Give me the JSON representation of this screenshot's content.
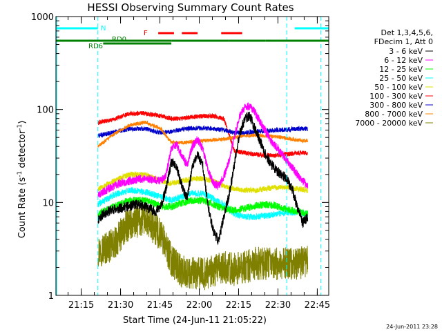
{
  "chart_data": {
    "type": "line",
    "title": "HESSI Observing Summary Count Rates",
    "xlabel": "Start Time (24-Jun-11 21:05:22)",
    "ylabel_main": "Count Rate (s",
    "ylabel_sup1": "-1",
    "ylabel_mid": " detector",
    "ylabel_sup2": "-1",
    "ylabel_end": ")",
    "yscale": "log",
    "ylim": [
      1,
      1000
    ],
    "xlim_minutes": [
      0,
      104
    ],
    "x_tick_labels": [
      "21:15",
      "21:30",
      "21:45",
      "22:00",
      "22:15",
      "22:30",
      "22:45"
    ],
    "y_tick_labels": [
      "1",
      "10",
      "100",
      "1000"
    ],
    "legend": {
      "header1": "Det 1,3,4,5,6,",
      "header2": "FDecim 1, Att 0",
      "placement": "right"
    },
    "series": [
      {
        "name": "3 - 6 keV",
        "color": "#000000",
        "seed": 11,
        "noise": 0.055,
        "x": [
          16,
          18,
          20,
          22,
          24,
          26,
          28,
          30,
          32,
          34,
          36,
          38,
          40,
          42,
          44,
          46,
          48,
          50,
          52,
          54,
          56,
          58,
          60,
          62,
          64,
          66,
          68,
          70,
          72,
          74,
          76,
          78,
          80,
          82,
          84,
          86,
          88,
          90,
          92,
          94,
          96
        ],
        "y": [
          6.5,
          7.5,
          8,
          8.5,
          8.5,
          9,
          9,
          9.5,
          9.5,
          9,
          8.5,
          8,
          9,
          14,
          27,
          24,
          15,
          11,
          24,
          33,
          25,
          9,
          5,
          3.8,
          7,
          12,
          25,
          55,
          80,
          85,
          60,
          45,
          32,
          26,
          22,
          20,
          18,
          14,
          9,
          6,
          7
        ]
      },
      {
        "name": "6 - 12 keV",
        "color": "#ff00ff",
        "seed": 23,
        "noise": 0.045,
        "x": [
          16,
          20,
          24,
          28,
          32,
          36,
          40,
          42,
          44,
          46,
          48,
          50,
          52,
          54,
          56,
          58,
          60,
          62,
          64,
          66,
          68,
          70,
          72,
          74,
          76,
          78,
          80,
          82,
          84,
          86,
          88,
          90,
          92,
          94,
          96
        ],
        "y": [
          12,
          14,
          16,
          17,
          18,
          18,
          17,
          20,
          38,
          42,
          32,
          25,
          40,
          48,
          38,
          22,
          16,
          15,
          19,
          28,
          50,
          85,
          105,
          110,
          92,
          72,
          58,
          46,
          40,
          34,
          28,
          24,
          20,
          17,
          15
        ]
      },
      {
        "name": "12 - 25 keV",
        "color": "#00ff00",
        "seed": 37,
        "noise": 0.04,
        "x": [
          16,
          22,
          28,
          34,
          40,
          44,
          48,
          52,
          56,
          60,
          64,
          68,
          72,
          76,
          80,
          84,
          88,
          92,
          96
        ],
        "y": [
          7.5,
          9,
          10.5,
          10.5,
          9.2,
          9,
          9.8,
          10.5,
          10.5,
          9.5,
          8.5,
          8.3,
          8.6,
          9.2,
          9.5,
          9.2,
          8.5,
          8,
          7.5
        ]
      },
      {
        "name": "25 - 50 keV",
        "color": "#00ffff",
        "seed": 41,
        "noise": 0.035,
        "x": [
          16,
          22,
          28,
          34,
          40,
          44,
          48,
          52,
          56,
          60,
          64,
          68,
          72,
          76,
          80,
          84,
          88,
          92,
          96
        ],
        "y": [
          9.5,
          12,
          13.5,
          13,
          11.5,
          10.5,
          11.5,
          12.5,
          12.5,
          11,
          9.5,
          7.5,
          7,
          7,
          7.2,
          7.5,
          7.8,
          7.8,
          7.5
        ]
      },
      {
        "name": "50 - 100 keV",
        "color": "#e0e000",
        "seed": 53,
        "noise": 0.03,
        "x": [
          16,
          22,
          28,
          34,
          40,
          44,
          48,
          52,
          56,
          60,
          64,
          68,
          72,
          76,
          80,
          84,
          88,
          92,
          96
        ],
        "y": [
          14,
          17,
          20,
          20,
          17,
          16,
          17,
          18,
          18,
          17,
          15,
          14,
          13.5,
          13.5,
          14,
          14.5,
          14.5,
          14,
          13.5
        ]
      },
      {
        "name": "100 - 300 keV",
        "color": "#ff0000",
        "seed": 61,
        "noise": 0.025,
        "x": [
          16,
          22,
          28,
          34,
          40,
          44,
          48,
          52,
          56,
          60,
          64,
          68,
          72,
          76,
          80,
          84,
          88,
          92,
          96
        ],
        "y": [
          72,
          78,
          90,
          91,
          85,
          80,
          80,
          83,
          85,
          85,
          80,
          36,
          34,
          33,
          32,
          32,
          33,
          34,
          34
        ]
      },
      {
        "name": "300 - 800 keV",
        "color": "#0000cc",
        "seed": 71,
        "noise": 0.025,
        "x": [
          16,
          22,
          28,
          34,
          40,
          44,
          48,
          52,
          56,
          60,
          64,
          68,
          72,
          76,
          80,
          84,
          88,
          92,
          96
        ],
        "y": [
          52,
          57,
          62,
          62,
          56,
          58,
          61,
          63,
          63,
          62,
          60,
          56,
          56,
          58,
          59,
          60,
          61,
          62,
          62
        ]
      },
      {
        "name": "800 - 7000 keV",
        "color": "#ff8000",
        "seed": 83,
        "noise": 0.02,
        "x": [
          16,
          22,
          28,
          34,
          40,
          44,
          48,
          52,
          56,
          60,
          64,
          68,
          72,
          76,
          80,
          84,
          88,
          92,
          96
        ],
        "y": [
          40,
          54,
          68,
          73,
          62,
          44,
          44,
          45,
          46,
          47,
          48,
          50,
          52,
          53,
          52,
          51,
          49,
          47,
          46
        ]
      },
      {
        "name": "7000 - 20000 keV",
        "color": "#808000",
        "seed": 97,
        "noise": 0.18,
        "x": [
          16,
          22,
          28,
          34,
          40,
          44,
          48,
          52,
          56,
          60,
          64,
          68,
          72,
          76,
          80,
          84,
          88,
          92,
          96
        ],
        "y": [
          3,
          3.5,
          6,
          6.5,
          4.5,
          2.4,
          1.8,
          1.7,
          1.7,
          1.8,
          2,
          1.9,
          2,
          2.2,
          2.2,
          2.2,
          2.2,
          2.2,
          2.3
        ]
      }
    ],
    "indicators": {
      "N_label": "N",
      "F_label": "F",
      "RD0_label": "RD0",
      "RD6_label": "RD6",
      "night_color": "#00ffff",
      "flare_color": "#ff0000",
      "saa_color": "#008000",
      "night_bars": [
        [
          0,
          16
        ],
        [
          91,
          104
        ]
      ],
      "night_dashes": [
        16,
        88,
        101
      ],
      "flare_bars": [
        [
          39,
          45
        ],
        [
          48,
          54
        ],
        [
          63,
          71
        ]
      ],
      "rd6_bars": [
        [
          0,
          44
        ],
        [
          44,
          66
        ],
        [
          66,
          80
        ],
        [
          80,
          104
        ]
      ],
      "rd0_bar": [
        18,
        44
      ]
    },
    "timestamp": "24-Jun-2011 23:28"
  }
}
